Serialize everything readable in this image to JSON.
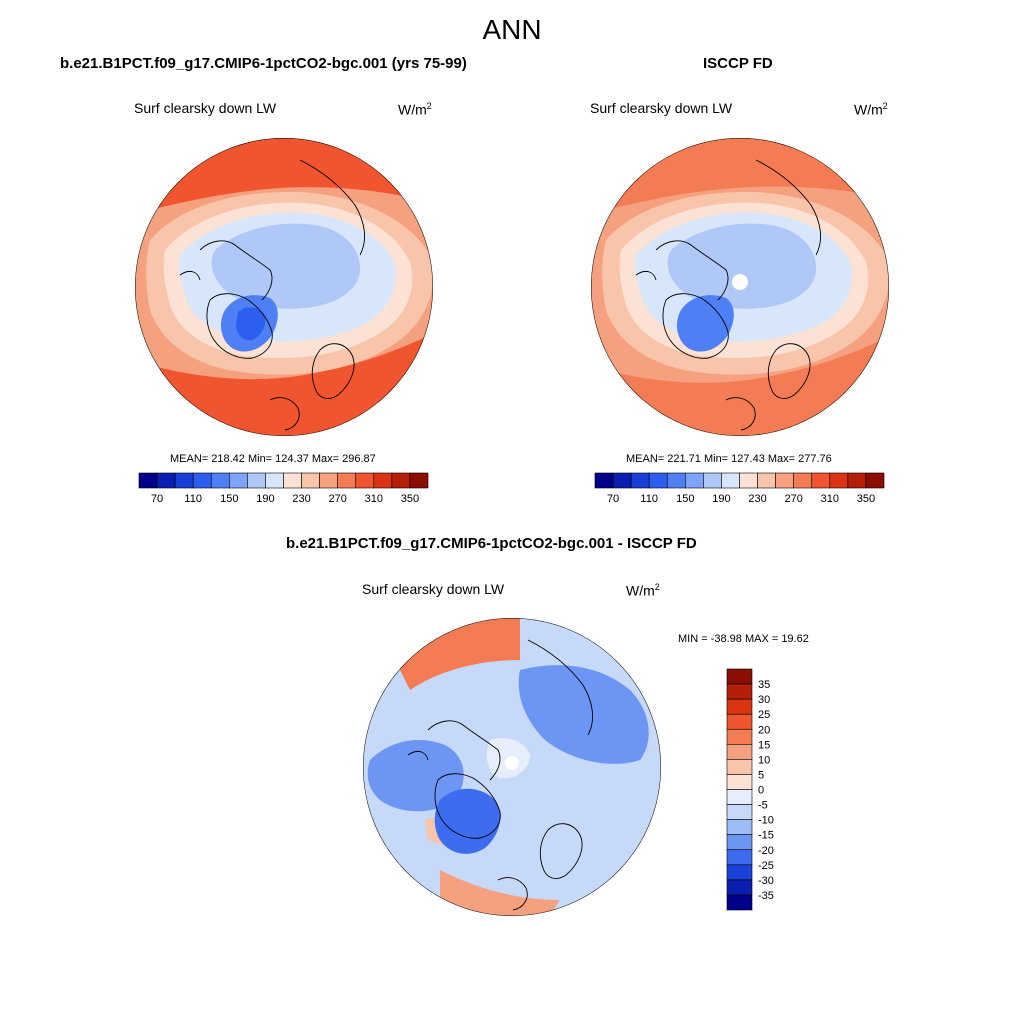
{
  "season": "ANN",
  "units_base": "W/m",
  "units_exp": "2",
  "panel_left": {
    "case": "b.e21.B1PCT.f09_g17.CMIP6-1pctCO2-bgc.001 (yrs 75-99)",
    "variable": "Surf clearsky down LW",
    "stats": "MEAN= 218.42  Min= 124.37  Max= 296.87",
    "mean": 218.42,
    "min": 124.37,
    "max": 296.87
  },
  "panel_right": {
    "case": "ISCCP FD",
    "variable": "Surf clearsky down LW",
    "stats": "MEAN= 221.71  Min= 127.43  Max= 277.76",
    "mean": 221.71,
    "min": 127.43,
    "max": 277.76
  },
  "panel_diff": {
    "case": "b.e21.B1PCT.f09_g17.CMIP6-1pctCO2-bgc.001 - ISCCP FD",
    "variable": "Surf clearsky down LW",
    "stats": "MIN = -38.98 MAX =  19.62",
    "min": -38.98,
    "max": 19.62
  },
  "colorbar_top": {
    "labels": [
      "70",
      "110",
      "150",
      "190",
      "230",
      "270",
      "310",
      "350"
    ],
    "levels": [
      70,
      90,
      110,
      130,
      150,
      170,
      190,
      210,
      230,
      250,
      270,
      290,
      310,
      330,
      350
    ],
    "colors": [
      "#00008a",
      "#0a1eb0",
      "#1a3fd8",
      "#2c5ef0",
      "#4f7ff5",
      "#7fa3f7",
      "#afc8f8",
      "#d8e6fb",
      "#fbe2d4",
      "#f8c4aa",
      "#f5a07f",
      "#f47c55",
      "#f0552f",
      "#da3413",
      "#b51f08",
      "#8a0f00"
    ]
  },
  "colorbar_diff": {
    "labels": [
      "35",
      "30",
      "25",
      "20",
      "15",
      "10",
      "5",
      "0",
      "-5",
      "-10",
      "-15",
      "-20",
      "-25",
      "-30",
      "-35"
    ],
    "colors": [
      "#8a0f00",
      "#b51f08",
      "#da3413",
      "#f0552f",
      "#f47c55",
      "#f5a07f",
      "#f8c4aa",
      "#fbe2d4",
      "#e6eefb",
      "#c7d9f9",
      "#9cbcf7",
      "#6d95f3",
      "#3d6cf0",
      "#1a42d8",
      "#0a1eb0",
      "#00008a"
    ]
  }
}
